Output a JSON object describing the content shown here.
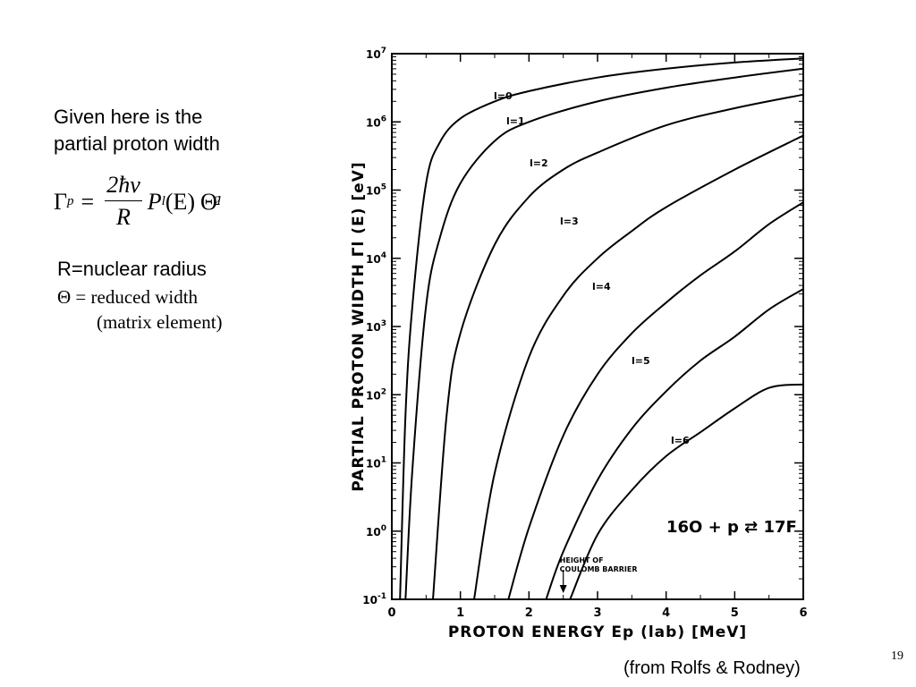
{
  "intro": {
    "line1": "Given here is the",
    "line2": "partial proton width"
  },
  "formula": {
    "gamma": "Γ",
    "gamma_sub": "p",
    "equals": "=",
    "numerator": "2ħv",
    "denominator": "R",
    "P": "P",
    "P_sub": "l",
    "arg": "(E)",
    "theta": "Θ",
    "theta_sub": "l",
    "theta_sup": "2"
  },
  "definitions": {
    "r": "R=nuclear radius",
    "theta_line1": "Θ = reduced width",
    "theta_line2": "(matrix element)"
  },
  "chart_data": {
    "type": "line",
    "xlabel": "PROTON ENERGY Ep (lab) [MeV]",
    "ylabel": "PARTIAL PROTON WIDTH Γl (E) [eV]",
    "xlim": [
      0,
      6
    ],
    "ylim_log10": [
      -1,
      7
    ],
    "yscale": "log",
    "xticks": [
      "0",
      "1",
      "2",
      "3",
      "4",
      "5",
      "6"
    ],
    "yticks": [
      "10-1",
      "100",
      "101",
      "102",
      "103",
      "104",
      "105",
      "106",
      "107"
    ],
    "series": [
      {
        "name": "l=0",
        "x": [
          0.12,
          0.2,
          0.3,
          0.5,
          0.7,
          1.0,
          1.5,
          2.0,
          3.0,
          4.0,
          5.0,
          6.0
        ],
        "log10_y": [
          -1.0,
          1.7,
          3.3,
          5.1,
          5.7,
          6.05,
          6.3,
          6.45,
          6.65,
          6.78,
          6.87,
          6.93
        ]
      },
      {
        "name": "l=1",
        "x": [
          0.2,
          0.3,
          0.5,
          0.7,
          1.0,
          1.5,
          2.0,
          3.0,
          4.0,
          5.0,
          6.0
        ],
        "log10_y": [
          -1.0,
          0.9,
          3.3,
          4.3,
          5.1,
          5.72,
          6.0,
          6.3,
          6.5,
          6.65,
          6.78
        ]
      },
      {
        "name": "l=2",
        "x": [
          0.6,
          0.8,
          1.0,
          1.5,
          2.0,
          2.5,
          3.0,
          4.0,
          5.0,
          6.0
        ],
        "log10_y": [
          -1.0,
          1.7,
          2.9,
          4.2,
          4.9,
          5.3,
          5.55,
          5.95,
          6.2,
          6.4
        ]
      },
      {
        "name": "l=3",
        "x": [
          1.2,
          1.5,
          2.0,
          2.5,
          3.0,
          3.5,
          4.0,
          5.0,
          6.0
        ],
        "log10_y": [
          -1.0,
          0.85,
          2.55,
          3.45,
          4.0,
          4.4,
          4.75,
          5.3,
          5.8
        ]
      },
      {
        "name": "l=4",
        "x": [
          1.7,
          2.0,
          2.5,
          3.0,
          3.5,
          4.0,
          4.5,
          5.0,
          5.5,
          6.0
        ],
        "log10_y": [
          -1.0,
          0.05,
          1.4,
          2.3,
          2.9,
          3.35,
          3.75,
          4.1,
          4.5,
          4.82
        ]
      },
      {
        "name": "l=5",
        "x": [
          2.25,
          2.5,
          3.0,
          3.5,
          4.0,
          4.5,
          5.0,
          5.5,
          6.0
        ],
        "log10_y": [
          -1.0,
          -0.3,
          0.75,
          1.5,
          2.05,
          2.5,
          2.85,
          3.25,
          3.55
        ]
      },
      {
        "name": "l=6",
        "x": [
          2.6,
          3.0,
          3.5,
          4.0,
          4.5,
          5.0,
          5.5,
          6.0
        ],
        "log10_y": [
          -1.0,
          -0.05,
          0.6,
          1.1,
          1.45,
          1.8,
          2.1,
          2.15
        ]
      }
    ],
    "annotations": {
      "reaction": "16O + p ⇄ 17F",
      "barrier_line1": "HEIGHT OF",
      "barrier_line2": "COULOMB BARRIER",
      "barrier_x": 2.5
    }
  },
  "source": "(from Rolfs & Rodney)",
  "page_number": "19"
}
